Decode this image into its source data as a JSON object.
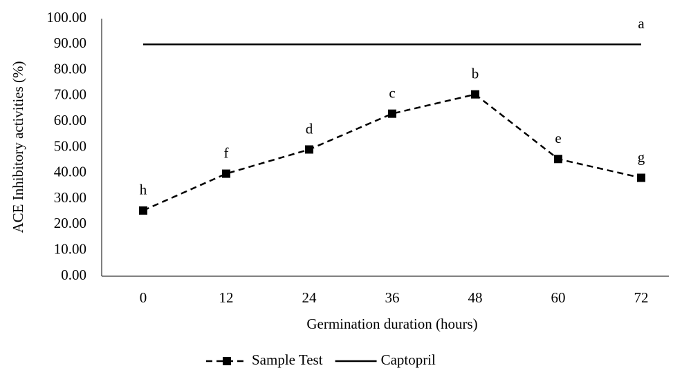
{
  "chart_data": {
    "type": "line",
    "x_label": "Germination duration (hours)",
    "y_label": "ACE Inhibitory activities (%)",
    "categories": [
      "0",
      "12",
      "24",
      "36",
      "48",
      "60",
      "72"
    ],
    "series": [
      {
        "name": "Sample Test",
        "color": "#000000",
        "line_style": "dashed",
        "marker": "square",
        "values": [
          25.5,
          39.8,
          49.2,
          63.1,
          70.6,
          45.5,
          38.2
        ],
        "point_labels": [
          "h",
          "f",
          "d",
          "c",
          "b",
          "e",
          "g"
        ]
      },
      {
        "name": "Captopril",
        "color": "#000000",
        "line_style": "solid",
        "marker": "none",
        "values": [
          90,
          90,
          90,
          90,
          90,
          90,
          90
        ],
        "point_labels": [
          null,
          null,
          null,
          null,
          null,
          null,
          "a"
        ]
      }
    ],
    "ylim": [
      0,
      100
    ],
    "yticks": [
      {
        "value": 0,
        "label": "0.00"
      },
      {
        "value": 10,
        "label": "10.00"
      },
      {
        "value": 20,
        "label": "20.00"
      },
      {
        "value": 30,
        "label": "30.00"
      },
      {
        "value": 40,
        "label": "40.00"
      },
      {
        "value": 50,
        "label": "50.00"
      },
      {
        "value": 60,
        "label": "60.00"
      },
      {
        "value": 70,
        "label": "70.00"
      },
      {
        "value": 80,
        "label": "80.00"
      },
      {
        "value": 90,
        "label": "90.00"
      },
      {
        "value": 100,
        "label": "100.00"
      }
    ],
    "grid": false,
    "legend": "bottom"
  }
}
